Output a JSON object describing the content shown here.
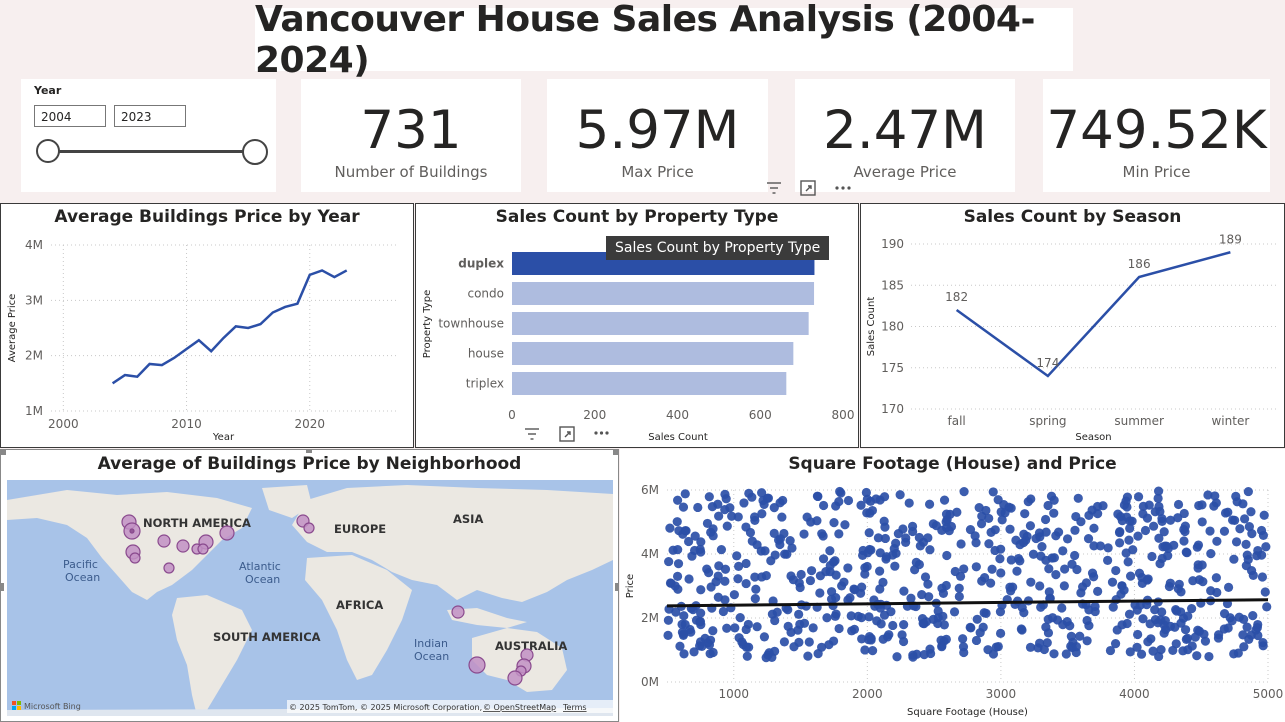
{
  "title": "Vancouver House Sales Analysis (2004-2024)",
  "slicer": {
    "label": "Year",
    "from": "2004",
    "to": "2023"
  },
  "kpis": [
    {
      "value": "731",
      "label": "Number of Buildings"
    },
    {
      "value": "5.97M",
      "label": "Max Price"
    },
    {
      "value": "2.47M",
      "label": "Average Price"
    },
    {
      "value": "749.52K",
      "label": "Min Price"
    }
  ],
  "tooltip": "Sales Count by Property Type",
  "icons": {
    "filter": "filter-icon",
    "focus": "focus-mode-icon",
    "more": "more-options-icon"
  },
  "colors": {
    "accent": "#2b4fa7",
    "bar_light": "#aebcdf",
    "map_water": "#a8c3e8",
    "map_land": "#ebe8e2",
    "bubble": "#c290c4"
  },
  "map": {
    "title": "Average of Buildings Price by Neighborhood",
    "labels": {
      "north_america": "NORTH AMERICA",
      "europe": "EUROPE",
      "asia": "ASIA",
      "africa": "AFRICA",
      "south_america": "SOUTH AMERICA",
      "australia": "AUSTRALIA",
      "pacific_1": "Pacific",
      "pacific_2": "Ocean",
      "atlantic_1": "Atlantic",
      "atlantic_2": "Ocean",
      "indian_1": "Indian",
      "indian_2": "Ocean"
    },
    "brand": "Microsoft Bing",
    "attribution": "© 2025 TomTom, © 2025 Microsoft Corporation,",
    "osm": "© OpenStreetMap",
    "terms": "Terms"
  },
  "chart_data": [
    {
      "type": "line",
      "title": "Average Buildings Price by Year",
      "xlabel": "Year",
      "ylabel": "Average Price",
      "xlim": [
        1999,
        2027
      ],
      "ylim": [
        1000000,
        4000000
      ],
      "xticks": [
        2000,
        2010,
        2020
      ],
      "xtick_labels": [
        "2000",
        "2010",
        "2020"
      ],
      "yticks": [
        1000000,
        2000000,
        3000000,
        4000000
      ],
      "ytick_labels": [
        "1M",
        "2M",
        "3M",
        "4M"
      ],
      "x": [
        2004,
        2005,
        2006,
        2007,
        2008,
        2009,
        2010,
        2011,
        2012,
        2013,
        2014,
        2015,
        2016,
        2017,
        2018,
        2019,
        2020,
        2021,
        2022,
        2023
      ],
      "y": [
        1500000,
        1650000,
        1620000,
        1850000,
        1830000,
        1960000,
        2120000,
        2280000,
        2080000,
        2320000,
        2530000,
        2500000,
        2570000,
        2780000,
        2880000,
        2940000,
        3460000,
        3540000,
        3420000,
        3540000
      ]
    },
    {
      "type": "bar",
      "title": "Sales Count by Property Type",
      "xlabel": "Sales Count",
      "ylabel": "Property Type",
      "xlim": [
        0,
        800
      ],
      "xticks": [
        0,
        200,
        400,
        600,
        800
      ],
      "xtick_labels": [
        "0",
        "200",
        "400",
        "600",
        "800"
      ],
      "categories": [
        "duplex",
        "condo",
        "townhouse",
        "house",
        "triplex"
      ],
      "values": [
        731,
        730,
        717,
        680,
        663
      ],
      "highlight": "duplex"
    },
    {
      "type": "line",
      "title": "Sales Count by Season",
      "xlabel": "Season",
      "ylabel": "Sales Count",
      "ylim": [
        170,
        190
      ],
      "yticks": [
        170,
        175,
        180,
        185,
        190
      ],
      "ytick_labels": [
        "170",
        "175",
        "180",
        "185",
        "190"
      ],
      "categories": [
        "fall",
        "spring",
        "summer",
        "winter"
      ],
      "values": [
        182,
        174,
        186,
        189
      ],
      "data_labels": [
        "182",
        "174",
        "186",
        "189"
      ]
    },
    {
      "type": "scatter",
      "title": "Square Footage (House) and Price",
      "xlabel": "Square Footage (House)",
      "ylabel": "Price",
      "xlim": [
        500,
        5000
      ],
      "ylim": [
        0,
        6000000
      ],
      "xticks": [
        1000,
        2000,
        3000,
        4000,
        5000
      ],
      "xtick_labels": [
        "1000",
        "2000",
        "3000",
        "4000",
        "5000"
      ],
      "yticks": [
        0,
        2000000,
        4000000,
        6000000
      ],
      "ytick_labels": [
        "0M",
        "2M",
        "4M",
        "6M"
      ],
      "point_count": 731,
      "price_min": 749520,
      "price_max": 5970000,
      "trendline": {
        "x": [
          500,
          5000
        ],
        "y": [
          2380000,
          2570000
        ]
      }
    }
  ]
}
